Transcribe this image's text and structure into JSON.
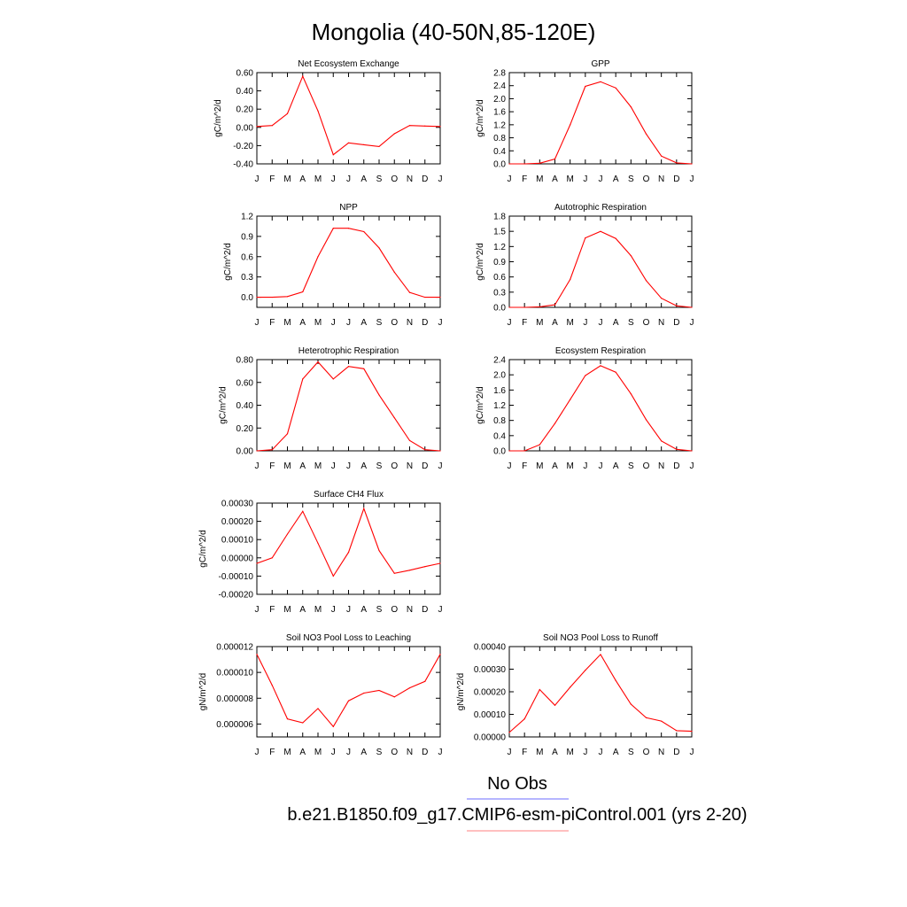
{
  "figure": {
    "title": "Mongolia (40-50N,85-120E)",
    "legend": {
      "obs_label": "No Obs",
      "model_label": "b.e21.B1850.f09_g17.CMIP6-esm-piControl.001 (yrs 2-20)",
      "obs_color": "#8a8aff",
      "model_color": "#ff9a9a"
    }
  },
  "line_color": "#ff0000",
  "chart_data": [
    {
      "type": "line",
      "title": "Net Ecosystem Exchange",
      "ylabel": "gC/m^2/d",
      "categories": [
        "J",
        "F",
        "M",
        "A",
        "M",
        "J",
        "J",
        "A",
        "S",
        "O",
        "N",
        "D",
        "J"
      ],
      "values": [
        0.01,
        0.02,
        0.15,
        0.56,
        0.18,
        -0.3,
        -0.17,
        -0.19,
        -0.21,
        -0.07,
        0.02,
        0.015,
        0.01
      ],
      "ylim": [
        -0.4,
        0.6
      ],
      "yticks": [
        "-0.40",
        "-0.20",
        "0.00",
        "0.20",
        "0.40",
        "0.60"
      ]
    },
    {
      "type": "line",
      "title": "GPP",
      "ylabel": "gC/m^2/d",
      "categories": [
        "J",
        "F",
        "M",
        "A",
        "M",
        "J",
        "J",
        "A",
        "S",
        "O",
        "N",
        "D",
        "J"
      ],
      "values": [
        0.0,
        0.0,
        0.02,
        0.15,
        1.2,
        2.38,
        2.52,
        2.33,
        1.75,
        0.92,
        0.24,
        0.03,
        0.0
      ],
      "ylim": [
        0.0,
        2.8
      ],
      "yticks": [
        "0.0",
        "0.4",
        "0.8",
        "1.2",
        "1.6",
        "2.0",
        "2.4",
        "2.8"
      ]
    },
    {
      "type": "line",
      "title": "NPP",
      "ylabel": "gC/m^2/d",
      "categories": [
        "J",
        "F",
        "M",
        "A",
        "M",
        "J",
        "J",
        "A",
        "S",
        "O",
        "N",
        "D",
        "J"
      ],
      "values": [
        0.0,
        0.0,
        0.01,
        0.08,
        0.6,
        1.02,
        1.02,
        0.97,
        0.73,
        0.37,
        0.07,
        0.0,
        0.0
      ],
      "ylim": [
        -0.15,
        1.2
      ],
      "yticks": [
        "0.0",
        "0.3",
        "0.6",
        "0.9",
        "1.2"
      ],
      "ytick_values": [
        0.0,
        0.3,
        0.6,
        0.9,
        1.2
      ]
    },
    {
      "type": "line",
      "title": "Autotrophic Respiration",
      "ylabel": "gC/m^2/d",
      "categories": [
        "J",
        "F",
        "M",
        "A",
        "M",
        "J",
        "J",
        "A",
        "S",
        "O",
        "N",
        "D",
        "J"
      ],
      "values": [
        0.0,
        0.0,
        0.01,
        0.05,
        0.55,
        1.37,
        1.5,
        1.36,
        1.02,
        0.53,
        0.18,
        0.03,
        0.0
      ],
      "ylim": [
        0.0,
        1.8
      ],
      "yticks": [
        "0.0",
        "0.3",
        "0.6",
        "0.9",
        "1.2",
        "1.5",
        "1.8"
      ]
    },
    {
      "type": "line",
      "title": "Heterotrophic Respiration",
      "ylabel": "gC/m^2/d",
      "categories": [
        "J",
        "F",
        "M",
        "A",
        "M",
        "J",
        "J",
        "A",
        "S",
        "O",
        "N",
        "D",
        "J"
      ],
      "values": [
        0.0,
        0.01,
        0.15,
        0.63,
        0.78,
        0.63,
        0.74,
        0.72,
        0.49,
        0.29,
        0.09,
        0.01,
        0.0
      ],
      "ylim": [
        0.0,
        0.8
      ],
      "yticks": [
        "0.00",
        "0.20",
        "0.40",
        "0.60",
        "0.80"
      ]
    },
    {
      "type": "line",
      "title": "Ecosystem Respiration",
      "ylabel": "gC/m^2/d",
      "categories": [
        "J",
        "F",
        "M",
        "A",
        "M",
        "J",
        "J",
        "A",
        "S",
        "O",
        "N",
        "D",
        "J"
      ],
      "values": [
        0.0,
        0.0,
        0.16,
        0.72,
        1.35,
        1.98,
        2.24,
        2.07,
        1.5,
        0.82,
        0.26,
        0.04,
        0.0
      ],
      "ylim": [
        0.0,
        2.4
      ],
      "yticks": [
        "0.0",
        "0.4",
        "0.8",
        "1.2",
        "1.6",
        "2.0",
        "2.4"
      ]
    },
    {
      "type": "line",
      "title": "Surface CH4 Flux",
      "ylabel": "gC/m^2/d",
      "categories": [
        "J",
        "F",
        "M",
        "A",
        "M",
        "J",
        "J",
        "A",
        "S",
        "O",
        "N",
        "D",
        "J"
      ],
      "values": [
        -3e-05,
        0.0,
        0.00013,
        0.000255,
        8e-05,
        -0.0001,
        3e-05,
        0.00027,
        4e-05,
        -8.5e-05,
        -6.8e-05,
        -4.8e-05,
        -3e-05
      ],
      "ylim": [
        -0.0002,
        0.0003
      ],
      "yticks": [
        "-0.00020",
        "-0.00010",
        "0.00000",
        "0.00010",
        "0.00020",
        "0.00030"
      ]
    },
    {
      "type": "line",
      "title": "Soil NO3 Pool Loss to Leaching",
      "ylabel": "gN/m^2/d",
      "categories": [
        "J",
        "F",
        "M",
        "A",
        "M",
        "J",
        "J",
        "A",
        "S",
        "O",
        "N",
        "D",
        "J"
      ],
      "values": [
        1.14e-05,
        9e-06,
        6.4e-06,
        6.1e-06,
        7.2e-06,
        5.8e-06,
        7.8e-06,
        8.4e-06,
        8.6e-06,
        8.1e-06,
        8.8e-06,
        9.3e-06,
        1.14e-05
      ],
      "ylim": [
        5e-06,
        1.2e-05
      ],
      "yticks": [
        "0.000006",
        "0.000008",
        "0.000010",
        "0.000012"
      ],
      "ytick_values": [
        6e-06,
        8e-06,
        1e-05,
        1.2e-05
      ]
    },
    {
      "type": "line",
      "title": "Soil NO3 Pool Loss to Runoff",
      "ylabel": "gN/m^2/d",
      "categories": [
        "J",
        "F",
        "M",
        "A",
        "M",
        "J",
        "J",
        "A",
        "S",
        "O",
        "N",
        "D",
        "J"
      ],
      "values": [
        2e-05,
        8e-05,
        0.00021,
        0.00014,
        0.00022,
        0.000295,
        0.000365,
        0.00025,
        0.000145,
        8.5e-05,
        7e-05,
        2.8e-05,
        2.5e-05
      ],
      "ylim": [
        0.0,
        0.0004
      ],
      "yticks": [
        "0.00000",
        "0.00010",
        "0.00020",
        "0.00030",
        "0.00040"
      ]
    }
  ]
}
